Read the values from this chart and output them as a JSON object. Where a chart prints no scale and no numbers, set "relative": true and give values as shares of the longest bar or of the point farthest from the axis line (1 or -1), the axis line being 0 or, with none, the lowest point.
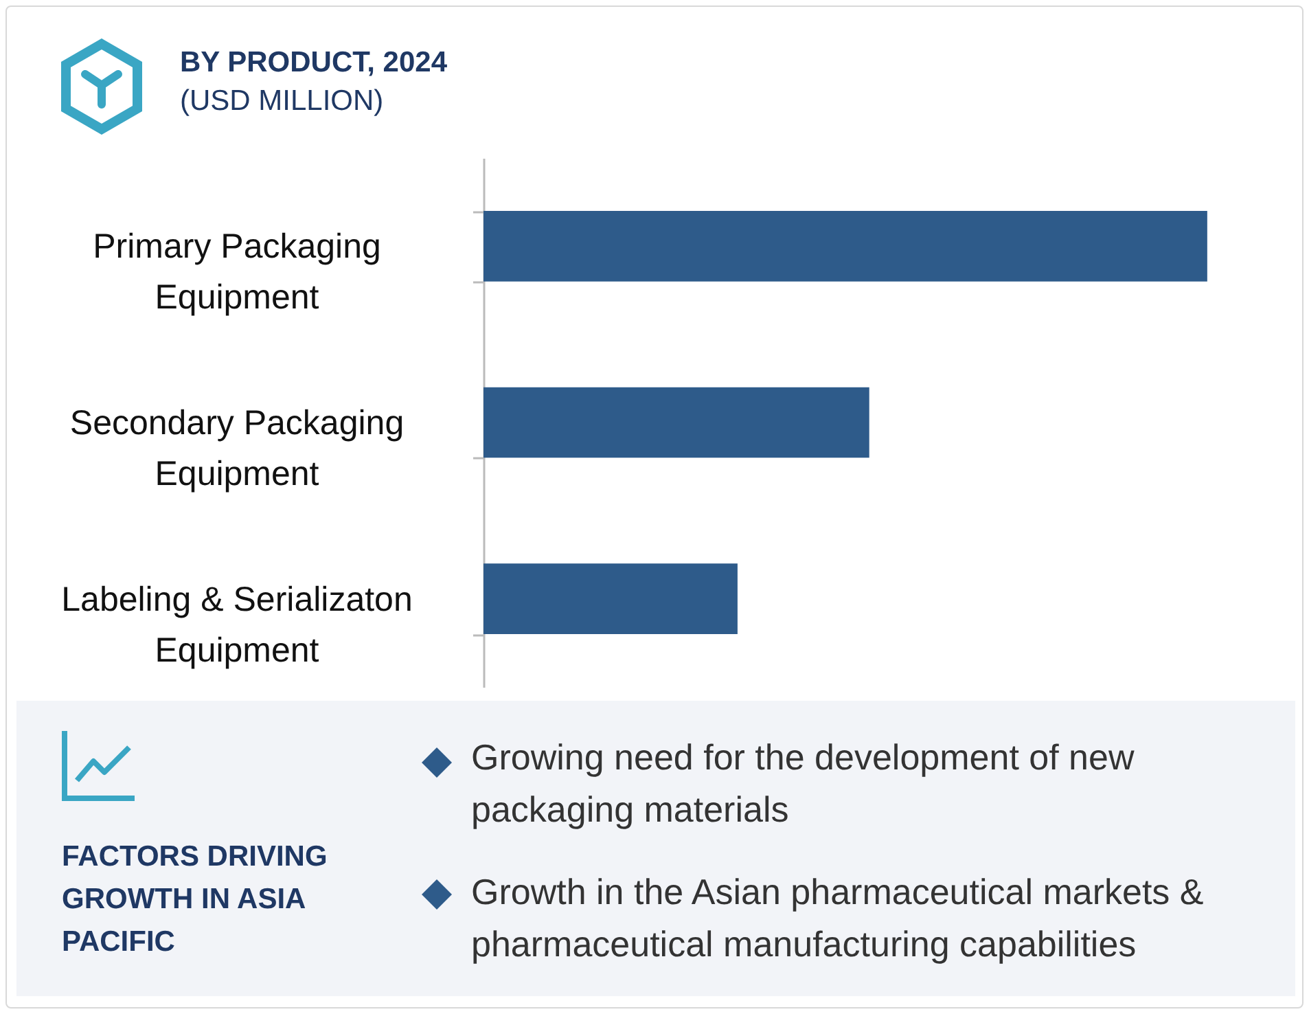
{
  "chart_data": {
    "type": "bar",
    "orientation": "horizontal",
    "relative": true,
    "title": "BY PRODUCT, 2024",
    "subtitle": "(USD MILLION)",
    "categories": [
      "Primary Packaging Equipment",
      "Secondary Packaging Equipment",
      "Labeling & Serializaton Equipment"
    ],
    "values": [
      1,
      0.533,
      0.351
    ],
    "color": "#2e5b8a",
    "annotations": [
      "FACTORS DRIVING GROWTH IN ASIA PACIFIC",
      "Growing need for the development of new packaging materials",
      "Growth in the Asian pharmaceutical markets & pharmaceutical manufacturing capabilities"
    ]
  }
}
